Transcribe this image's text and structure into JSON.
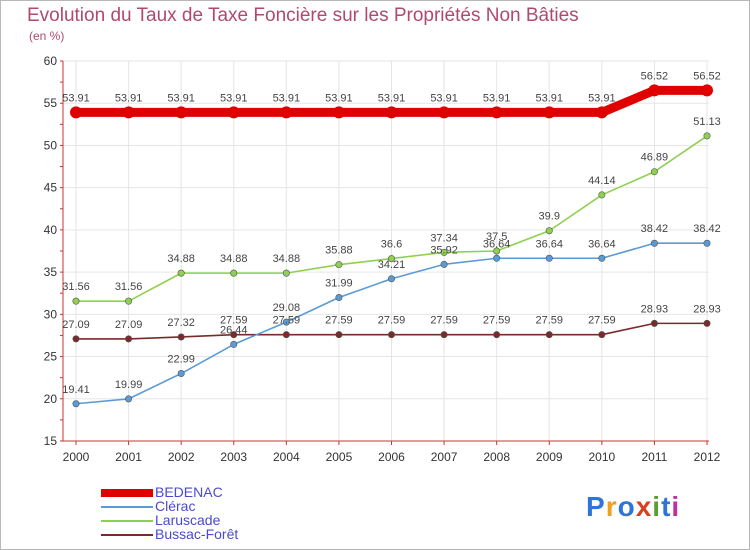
{
  "chart_data": {
    "type": "line",
    "title": "Evolution du Taux de Taxe Foncière sur les Propriétés Non Bâties",
    "ylabel": "(en %)",
    "xlabel": "",
    "x": [
      "2000",
      "2001",
      "2002",
      "2003",
      "2004",
      "2005",
      "2006",
      "2007",
      "2008",
      "2009",
      "2010",
      "2011",
      "2012"
    ],
    "ylim": [
      15,
      60
    ],
    "yticks": [
      15,
      20,
      25,
      30,
      35,
      40,
      45,
      50,
      55,
      60
    ],
    "series": [
      {
        "name": "BEDENAC",
        "color": "#e00000",
        "labels": [
          "53.91",
          "53.91",
          "53.91",
          "53.91",
          "53.91",
          "53.91",
          "53.91",
          "53.91",
          "53.91",
          "53.91",
          "53.91",
          "56.52",
          "56.52"
        ],
        "values": [
          53.91,
          53.91,
          53.91,
          53.91,
          53.91,
          53.91,
          53.91,
          53.91,
          53.91,
          53.91,
          53.91,
          56.52,
          56.52
        ]
      },
      {
        "name": "Clérac",
        "color": "#5b9bd5",
        "labels": [
          "19.41",
          "19.99",
          "22.99",
          "26.44",
          "29.08",
          "31.99",
          "34.21",
          "35.92",
          "36.64",
          "36.64",
          "36.64",
          "38.42",
          "38.42"
        ],
        "values": [
          19.41,
          19.99,
          22.99,
          26.44,
          29.08,
          31.99,
          34.21,
          35.92,
          36.64,
          36.64,
          36.64,
          38.42,
          38.42
        ]
      },
      {
        "name": "Laruscade",
        "color": "#8fd14f",
        "labels": [
          "31.56",
          "31.56",
          "34.88",
          "34.88",
          "34.88",
          "35.88",
          "36.6",
          "37.34",
          "37.5",
          "39.9",
          "44.14",
          "46.89",
          "51.13"
        ],
        "values": [
          31.56,
          31.56,
          34.88,
          34.88,
          34.88,
          35.88,
          36.6,
          37.34,
          37.5,
          39.9,
          44.14,
          46.89,
          51.13
        ]
      },
      {
        "name": "Bussac-Forêt",
        "color": "#7a2a2a",
        "labels": [
          "27.09",
          "27.09",
          "27.32",
          "27.59",
          "27.59",
          "27.59",
          "27.59",
          "27.59",
          "27.59",
          "27.59",
          "27.59",
          "28.93",
          "28.93"
        ],
        "values": [
          27.09,
          27.09,
          27.32,
          27.59,
          27.59,
          27.59,
          27.59,
          27.59,
          27.59,
          27.59,
          27.59,
          28.93,
          28.93
        ]
      }
    ],
    "grid": true,
    "legend": "bottom-left"
  },
  "brand": {
    "text": "Proxiti",
    "letters": [
      "P",
      "r",
      "o",
      "x",
      "i",
      "t",
      "i"
    ],
    "colors": [
      "#2e75d6",
      "#f0a020",
      "#2e75d6",
      "#d84020",
      "#5aa030",
      "#2e75d6",
      "#c030a0"
    ]
  },
  "colors": {
    "title": "#b04a6c",
    "grid": "#e6e6e6",
    "axis": "#cc3333"
  }
}
